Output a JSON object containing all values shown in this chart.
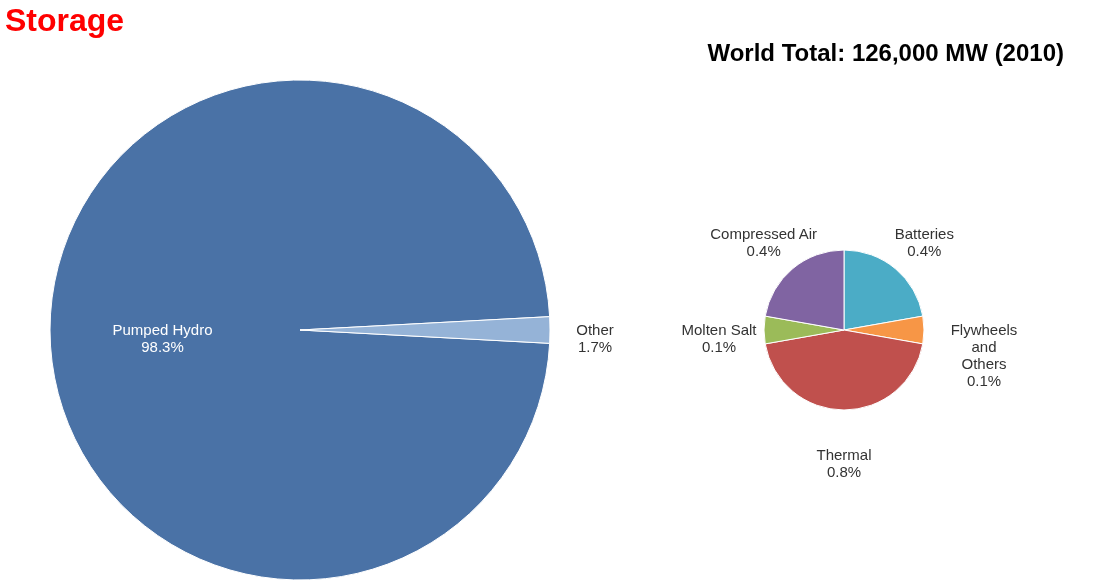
{
  "chart_data": [
    {
      "type": "pie",
      "title": "Storage",
      "subtitle": "World Total: 126,000 MW (2010)",
      "categories": [
        "Pumped Hydro",
        "Other"
      ],
      "values": [
        98.3,
        1.7
      ],
      "colors": [
        "#4a72a6",
        "#95b3d7"
      ],
      "value_labels": [
        "98.3%",
        "1.7%"
      ]
    },
    {
      "type": "pie",
      "categories": [
        "Batteries",
        "Flywheels and Others",
        "Thermal",
        "Molten Salt",
        "Compressed Air"
      ],
      "values": [
        0.4,
        0.1,
        0.8,
        0.1,
        0.4
      ],
      "colors": [
        "#4bacc6",
        "#f79646",
        "#c0504d",
        "#9bbb59",
        "#8064a2"
      ],
      "value_labels": [
        "0.4%",
        "0.1%",
        "0.8%",
        "0.1%",
        "0.4%"
      ]
    }
  ]
}
